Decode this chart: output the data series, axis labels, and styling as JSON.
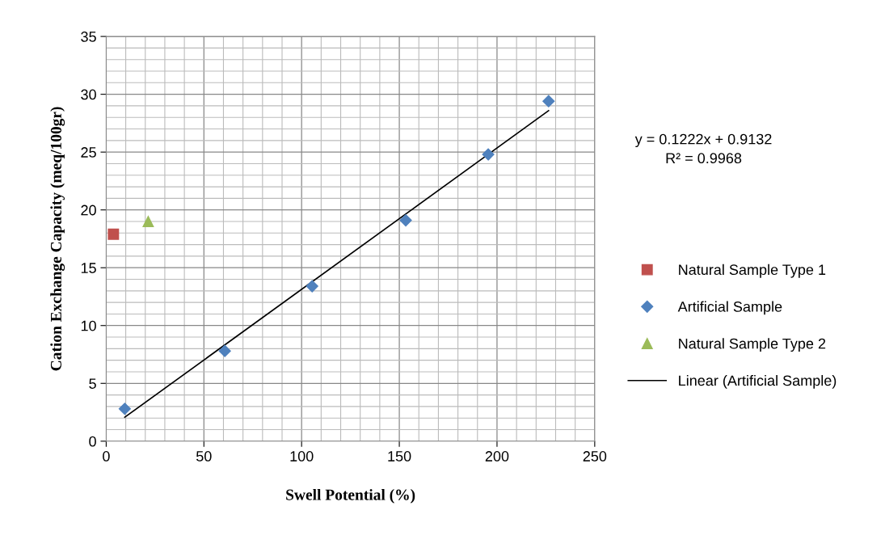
{
  "chart_data": {
    "type": "scatter",
    "xlabel": "Swell Potential (%)",
    "ylabel": "Cation Exchange Capacity (meq/100gr)",
    "xlim": [
      0,
      250
    ],
    "xticks": [
      0,
      50,
      100,
      150,
      200,
      250
    ],
    "ylim": [
      0,
      35
    ],
    "yticks": [
      0,
      5,
      10,
      15,
      20,
      25,
      30,
      35
    ],
    "grid": true,
    "legend": "right",
    "series": [
      {
        "name": "Natural Sample Type 1",
        "color": "#c0504d",
        "marker": "square",
        "x": [
          3.7
        ],
        "values": [
          17.9
        ]
      },
      {
        "name": "Artificial Sample",
        "color": "#4f81bd",
        "marker": "diamond",
        "x": [
          9.5,
          60.7,
          105.4,
          153.3,
          195.5,
          226.4
        ],
        "values": [
          2.8,
          7.8,
          13.4,
          19.1,
          24.8,
          29.4
        ]
      },
      {
        "name": "Natural Sample Type 2",
        "color": "#9bbb59",
        "marker": "triangle",
        "x": [
          21.5
        ],
        "values": [
          19.0
        ]
      },
      {
        "name": "Linear (Artificial Sample)",
        "type": "line",
        "color": "#000000",
        "marker": "none",
        "x": [
          9.5,
          226.4
        ],
        "values": [
          2.07,
          28.58
        ]
      }
    ],
    "annotations": [
      "y = 0.1222x + 0.9132",
      "R² = 0.9968"
    ]
  }
}
